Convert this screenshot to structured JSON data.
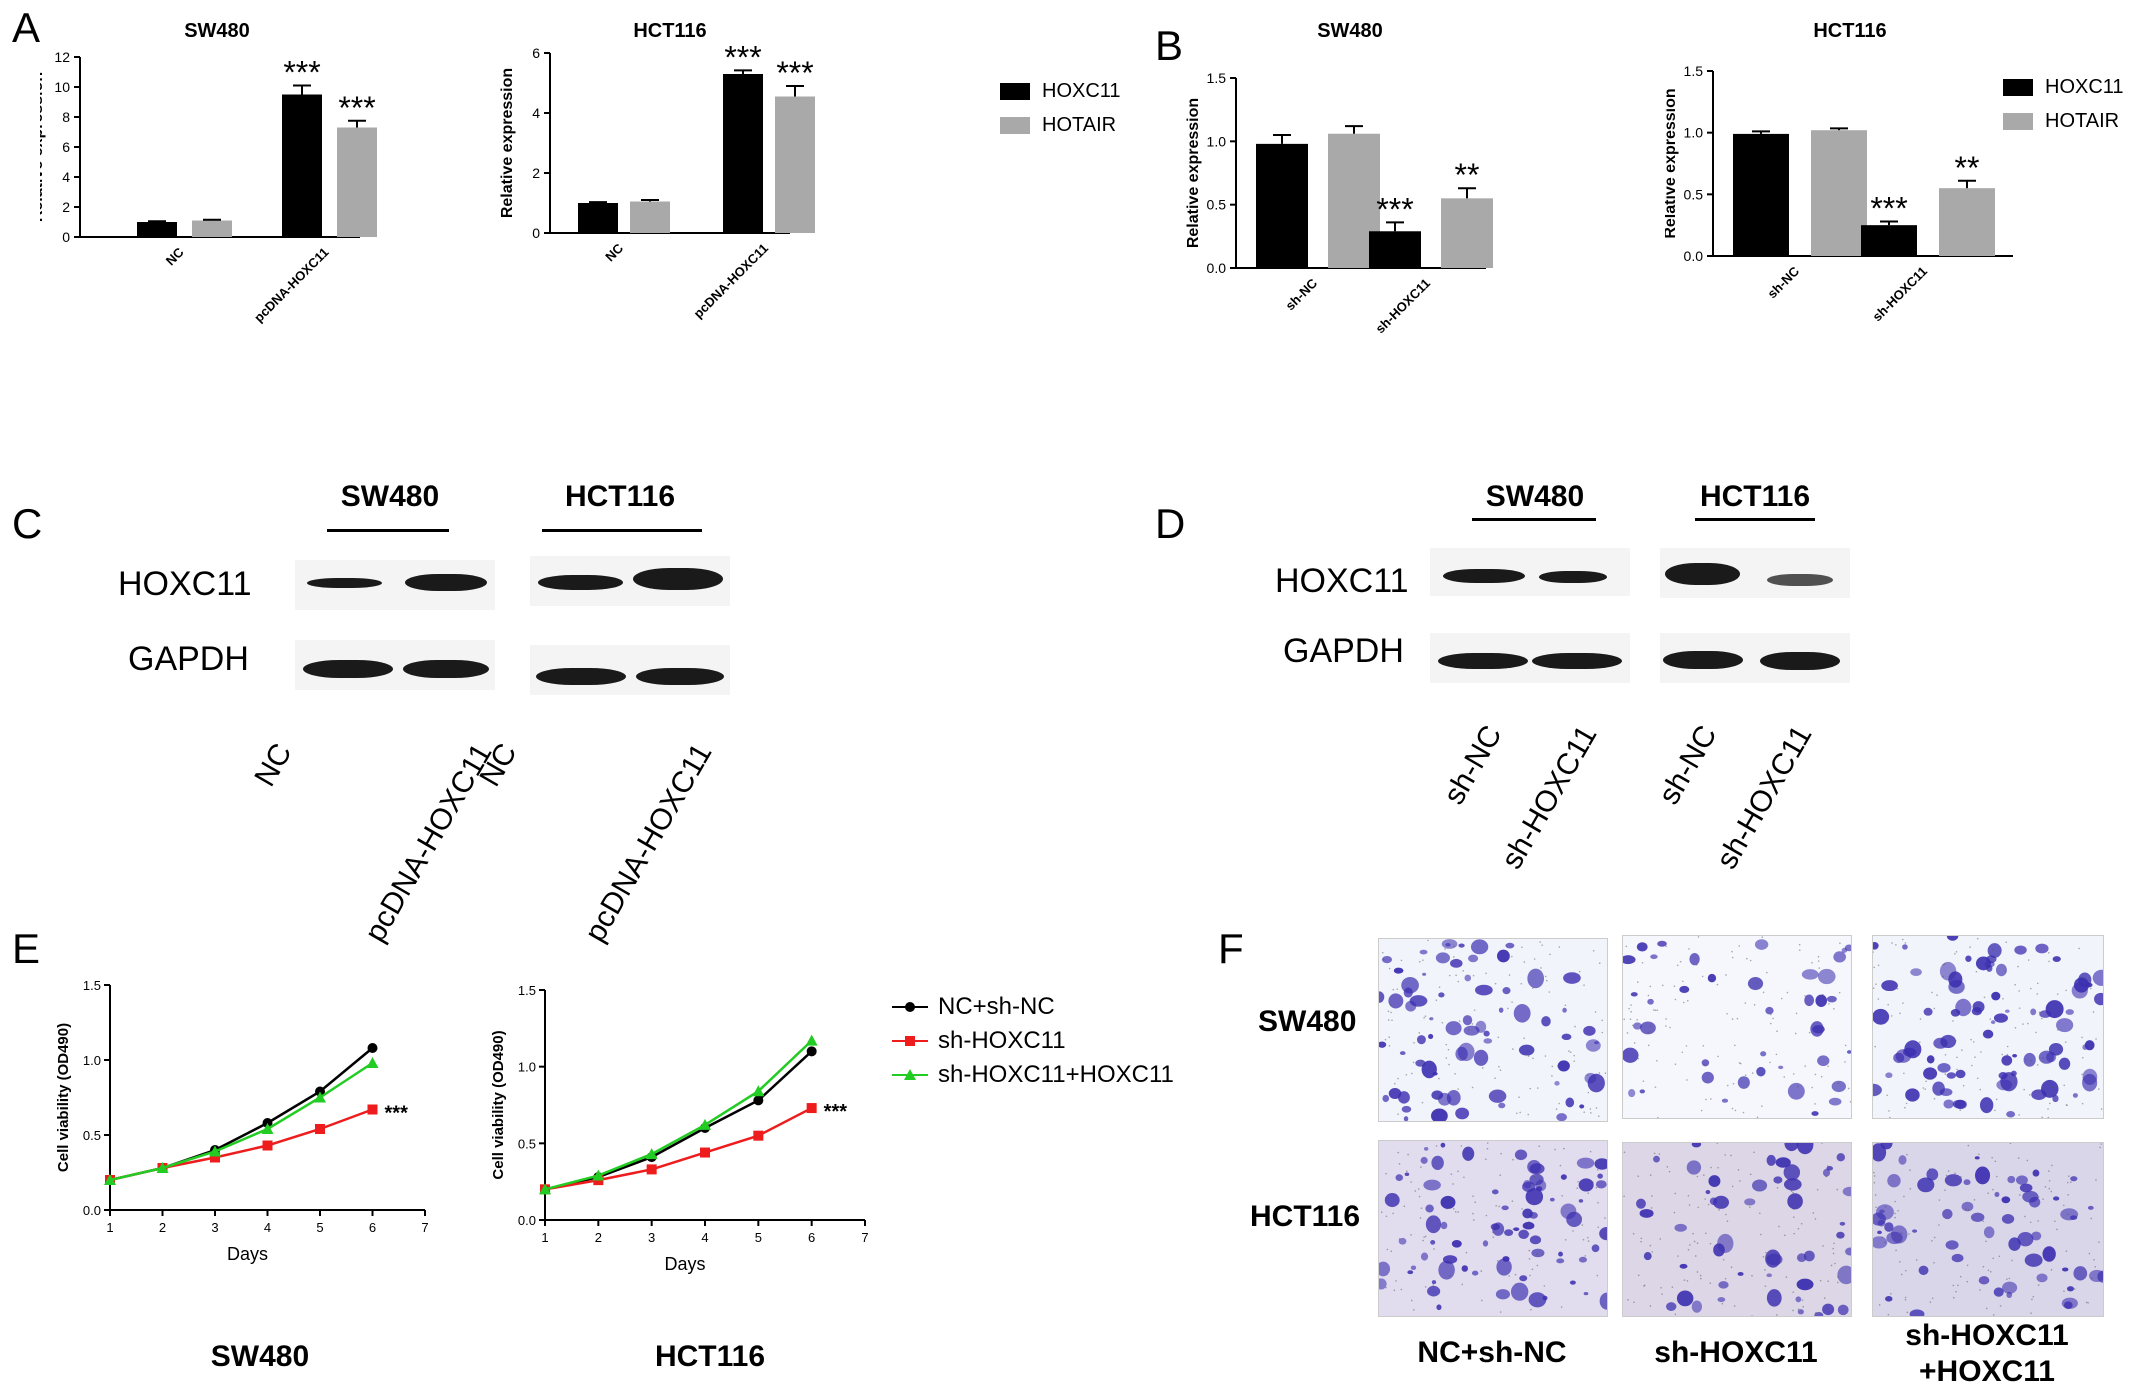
{
  "panels": {
    "A": "A",
    "B": "B",
    "C": "C",
    "D": "D",
    "E": "E",
    "F": "F"
  },
  "legend_ab": [
    {
      "name": "HOXC11",
      "color": "#000000"
    },
    {
      "name": "HOTAIR",
      "color": "#a9a9a9"
    }
  ],
  "legend_e": [
    {
      "name": "NC+sh-NC",
      "color": "#000000"
    },
    {
      "name": "sh-HOXC11",
      "color": "#ee1c1c"
    },
    {
      "name": "sh-HOXC11+HOXC11",
      "color": "#22cc22"
    }
  ],
  "chart_data": [
    {
      "id": "A1",
      "type": "bar",
      "title": "SW480",
      "categories": [
        "NC",
        "pcDNA-HOXC11"
      ],
      "ylabel": "Relative expression",
      "ylim": [
        0,
        12
      ],
      "yticks": [
        "0",
        "2",
        "4",
        "6",
        "8",
        "10",
        "12"
      ],
      "series": [
        {
          "name": "HOXC11",
          "values": [
            1.0,
            9.5
          ],
          "errors": [
            0.05,
            0.6
          ]
        },
        {
          "name": "HOTAIR",
          "values": [
            1.1,
            7.3
          ],
          "errors": [
            0.05,
            0.45
          ]
        }
      ],
      "annotations": [
        [
          "",
          "***"
        ],
        [
          "",
          "***"
        ]
      ]
    },
    {
      "id": "A2",
      "type": "bar",
      "title": "HCT116",
      "categories": [
        "NC",
        "pcDNA-HOXC11"
      ],
      "ylabel": "Relative expression",
      "ylim": [
        0,
        6
      ],
      "yticks": [
        "0",
        "2",
        "4",
        "6"
      ],
      "series": [
        {
          "name": "HOXC11",
          "values": [
            1.0,
            5.3
          ],
          "errors": [
            0.03,
            0.12
          ]
        },
        {
          "name": "HOTAIR",
          "values": [
            1.05,
            4.55
          ],
          "errors": [
            0.05,
            0.35
          ]
        }
      ],
      "annotations": [
        [
          "",
          "***"
        ],
        [
          "",
          "***"
        ]
      ]
    },
    {
      "id": "B1",
      "type": "bar",
      "title": "SW480",
      "categories": [
        "sh-NC",
        "sh-HOXC11"
      ],
      "ylabel": "Relative expression",
      "ylim": [
        0,
        1.5
      ],
      "yticks": [
        "0.0",
        "0.5",
        "1.0",
        "1.5"
      ],
      "series": [
        {
          "name": "HOXC11",
          "values": [
            0.98,
            0.29
          ],
          "errors": [
            0.07,
            0.07
          ]
        },
        {
          "name": "HOTAIR",
          "values": [
            1.06,
            0.55
          ],
          "errors": [
            0.06,
            0.08
          ]
        }
      ],
      "annotations": [
        [
          "",
          "***"
        ],
        [
          "",
          "**"
        ]
      ]
    },
    {
      "id": "B2",
      "type": "bar",
      "title": "HCT116",
      "categories": [
        "sh-NC",
        "sh-HOXC11"
      ],
      "ylabel": "Relative expression",
      "ylim": [
        0,
        1.5
      ],
      "yticks": [
        "0.0",
        "0.5",
        "1.0",
        "1.5"
      ],
      "series": [
        {
          "name": "HOXC11",
          "values": [
            0.99,
            0.25
          ],
          "errors": [
            0.02,
            0.03
          ]
        },
        {
          "name": "HOTAIR",
          "values": [
            1.02,
            0.55
          ],
          "errors": [
            0.015,
            0.06
          ]
        }
      ],
      "annotations": [
        [
          "",
          "***"
        ],
        [
          "",
          "**"
        ]
      ]
    },
    {
      "id": "E1",
      "type": "line",
      "title": "SW480",
      "xlabel": "Days",
      "ylabel": "Cell viability (OD490)",
      "xlim": [
        1,
        7
      ],
      "ylim": [
        0,
        1.5
      ],
      "xticks": [
        "1",
        "2",
        "3",
        "4",
        "5",
        "6",
        "7"
      ],
      "yticks": [
        "0.0",
        "0.5",
        "1.0",
        "1.5"
      ],
      "x": [
        1,
        2,
        3,
        4,
        5,
        6
      ],
      "series": [
        {
          "name": "NC+sh-NC",
          "values": [
            0.2,
            0.28,
            0.4,
            0.58,
            0.79,
            1.08
          ]
        },
        {
          "name": "sh-HOXC11",
          "values": [
            0.2,
            0.28,
            0.35,
            0.43,
            0.54,
            0.67
          ]
        },
        {
          "name": "sh-HOXC11+HOXC11",
          "values": [
            0.2,
            0.28,
            0.39,
            0.54,
            0.75,
            0.98
          ]
        }
      ],
      "annotation": "***"
    },
    {
      "id": "E2",
      "type": "line",
      "title": "HCT116",
      "xlabel": "Days",
      "ylabel": "Cell viability (OD490)",
      "xlim": [
        1,
        7
      ],
      "ylim": [
        0,
        1.5
      ],
      "xticks": [
        "1",
        "2",
        "3",
        "4",
        "5",
        "6",
        "7"
      ],
      "yticks": [
        "0.0",
        "0.5",
        "1.0",
        "1.5"
      ],
      "x": [
        1,
        2,
        3,
        4,
        5,
        6
      ],
      "series": [
        {
          "name": "NC+sh-NC",
          "values": [
            0.2,
            0.28,
            0.41,
            0.6,
            0.78,
            1.1
          ]
        },
        {
          "name": "sh-HOXC11",
          "values": [
            0.2,
            0.26,
            0.33,
            0.44,
            0.55,
            0.73
          ]
        },
        {
          "name": "sh-HOXC11+HOXC11",
          "values": [
            0.2,
            0.29,
            0.43,
            0.62,
            0.84,
            1.17
          ]
        }
      ],
      "annotation": "***"
    }
  ],
  "blot_c": {
    "groups": [
      "SW480",
      "HCT116"
    ],
    "rows": [
      "HOXC11",
      "GAPDH"
    ],
    "lanes": [
      "NC",
      "pcDNA-HOXC11",
      "NC",
      "pcDNA-HOXC11"
    ]
  },
  "blot_d": {
    "groups": [
      "SW480",
      "HCT116"
    ],
    "rows": [
      "HOXC11",
      "GAPDH"
    ],
    "lanes": [
      "sh-NC",
      "sh-HOXC11",
      "sh-NC",
      "sh-HOXC11"
    ]
  },
  "panel_f": {
    "rows": [
      "SW480",
      "HCT116"
    ],
    "cols": [
      "NC+sh-NC",
      "sh-HOXC11",
      "sh-HOXC11\n+HOXC11"
    ]
  }
}
